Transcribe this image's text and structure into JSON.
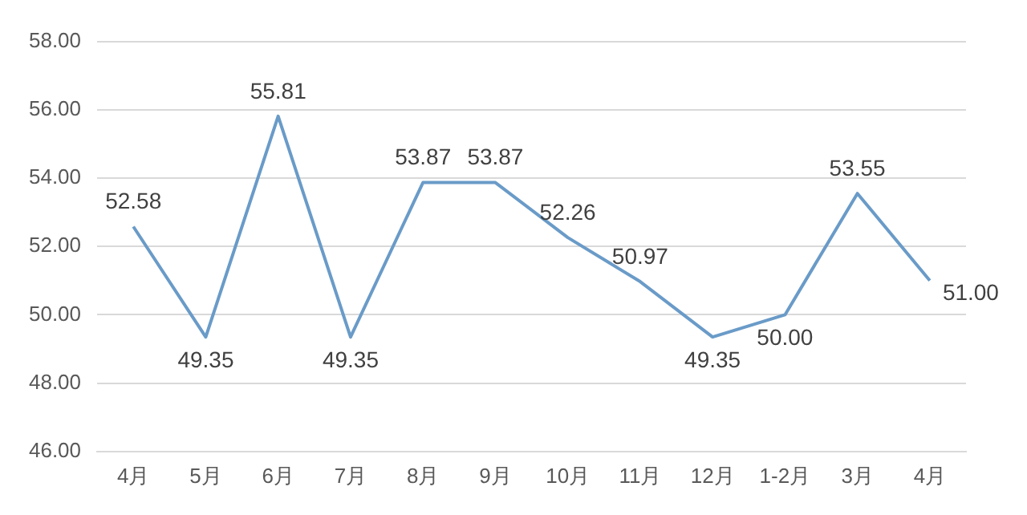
{
  "chart_data": {
    "type": "line",
    "categories": [
      "4月",
      "5月",
      "6月",
      "7月",
      "8月",
      "9月",
      "10月",
      "11月",
      "12月",
      "1-2月",
      "3月",
      "4月"
    ],
    "series": [
      {
        "color": "#6a9bc8",
        "values": [
          52.58,
          49.35,
          55.81,
          49.35,
          53.87,
          53.87,
          52.26,
          50.97,
          49.35,
          50.0,
          53.55,
          51.0
        ],
        "value_labels": [
          "52.58",
          "49.35",
          "55.81",
          "49.35",
          "53.87",
          "53.87",
          "52.26",
          "50.97",
          "49.35",
          "50.00",
          "53.55",
          "51.00"
        ]
      }
    ],
    "ylim": [
      46,
      58
    ],
    "yticks": [
      {
        "value": 46,
        "label": "46.00"
      },
      {
        "value": 48,
        "label": "48.00"
      },
      {
        "value": 50,
        "label": "50.00"
      },
      {
        "value": 52,
        "label": "52.00"
      },
      {
        "value": 54,
        "label": "54.00"
      },
      {
        "value": 56,
        "label": "56.00"
      },
      {
        "value": 58,
        "label": "58.00"
      }
    ],
    "grid": "y",
    "legend": false,
    "marker": "none",
    "line_style": "solid"
  }
}
